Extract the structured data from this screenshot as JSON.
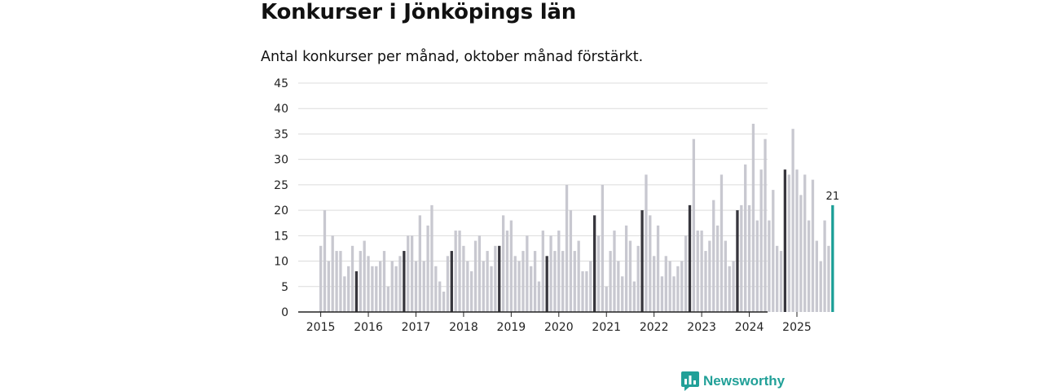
{
  "header": {
    "title": "Konkurser i Jönköpings län",
    "subtitle": "Antal konkurser per månad, oktober månad förstärkt."
  },
  "brand": {
    "name": "Newsworthy"
  },
  "colors": {
    "bar_default": "#c8c8d0",
    "bar_october": "#37363d",
    "bar_latest": "#1a9e96",
    "grid": "#dcdcdc",
    "axis": "#222222",
    "brand": "#21a098"
  },
  "chart_data": {
    "type": "bar",
    "title": "Konkurser i Jönköpings län",
    "subtitle": "Antal konkurser per månad, oktober månad förstärkt.",
    "xlabel": "",
    "ylabel": "",
    "ylim": [
      0,
      45
    ],
    "yticks": [
      0,
      5,
      10,
      15,
      20,
      25,
      30,
      35,
      40,
      45
    ],
    "start": "2015-01",
    "xtick_labels": [
      "2015",
      "2016",
      "2017",
      "2018",
      "2019",
      "2020",
      "2021",
      "2022",
      "2023",
      "2024",
      "2025"
    ],
    "highlight": "October of each year emphasized; latest month in teal",
    "latest_label": "21",
    "values": [
      13,
      20,
      10,
      15,
      12,
      12,
      7,
      9,
      13,
      8,
      12,
      14,
      11,
      9,
      9,
      10,
      12,
      5,
      10,
      9,
      11,
      12,
      15,
      15,
      10,
      19,
      10,
      17,
      21,
      9,
      6,
      4,
      11,
      12,
      16,
      16,
      13,
      10,
      8,
      14,
      15,
      10,
      12,
      9,
      13,
      13,
      19,
      16,
      18,
      11,
      10,
      12,
      15,
      9,
      12,
      6,
      16,
      11,
      15,
      12,
      16,
      12,
      25,
      20,
      12,
      14,
      8,
      8,
      10,
      19,
      15,
      25,
      5,
      12,
      16,
      10,
      7,
      17,
      14,
      6,
      13,
      20,
      27,
      19,
      11,
      17,
      7,
      11,
      10,
      7,
      9,
      10,
      15,
      21,
      34,
      16,
      16,
      12,
      14,
      22,
      17,
      27,
      14,
      9,
      10,
      20,
      21,
      29,
      21,
      37,
      18,
      28,
      34,
      18,
      24,
      13,
      12,
      28,
      27,
      36,
      28,
      23,
      27,
      18,
      26,
      14,
      10,
      18,
      13,
      21
    ]
  }
}
